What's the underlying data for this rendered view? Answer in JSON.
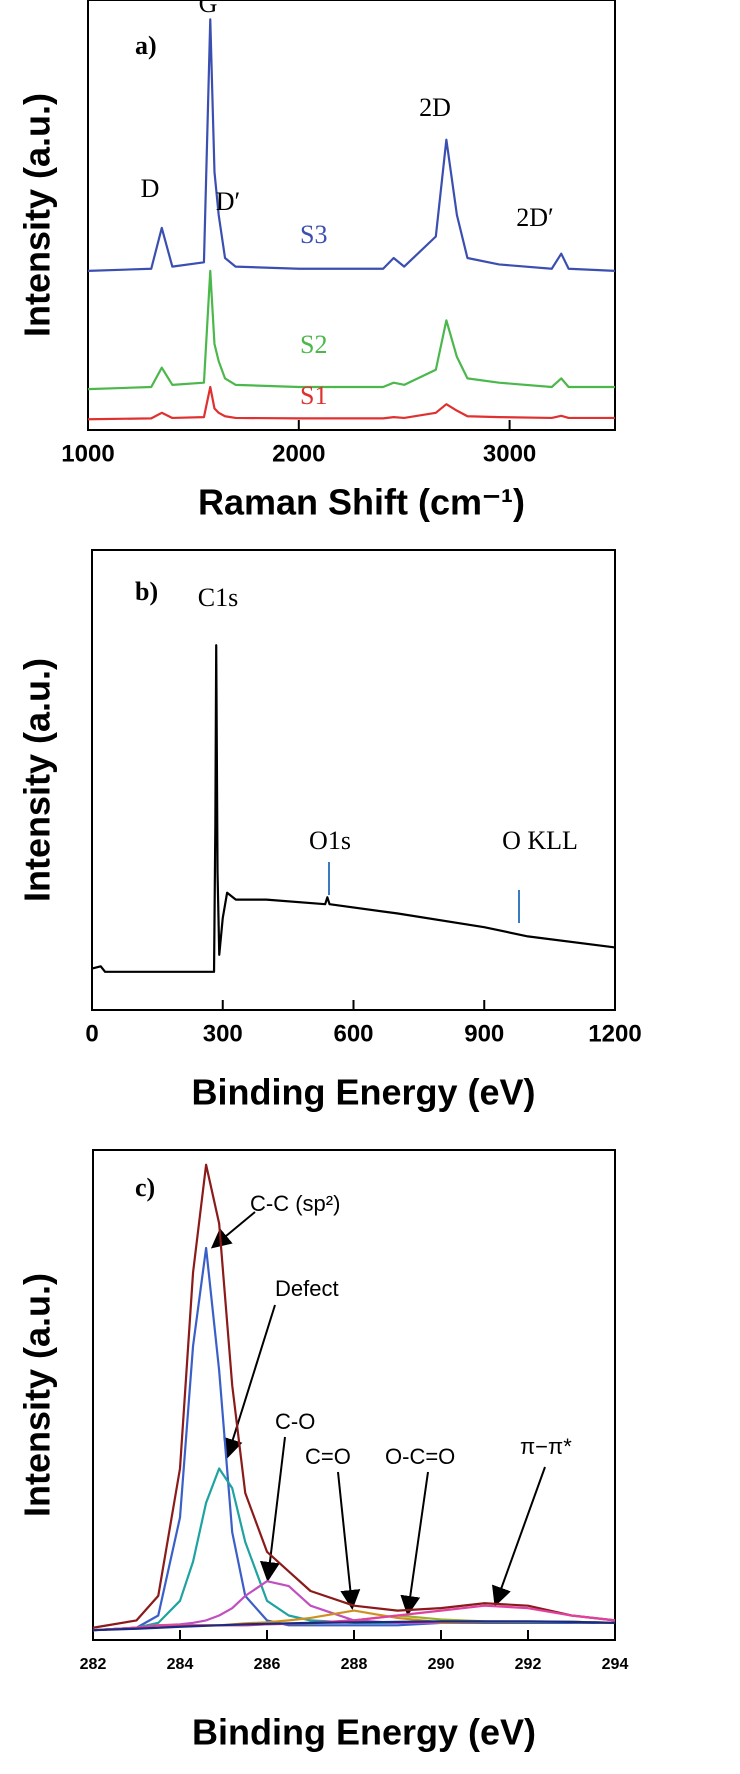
{
  "chart_data": [
    {
      "type": "line",
      "xlabel": "Raman Shift (cm⁻¹)",
      "ylabel": "Intensity (a.u.)",
      "annotations": [
        "a)",
        "G",
        "D",
        "D′",
        "2D",
        "2D′"
      ],
      "xlim": [
        1000,
        3500
      ],
      "xticks": [
        1000,
        2000,
        3000
      ],
      "ylim": [
        0,
        100
      ],
      "x": [
        1000,
        1300,
        1350,
        1400,
        1550,
        1580,
        1600,
        1620,
        1650,
        1700,
        2000,
        2400,
        2450,
        2500,
        2650,
        2700,
        2750,
        2800,
        2950,
        3200,
        3245,
        3280,
        3500
      ],
      "series": [
        {
          "name": "S3",
          "color": "#3b4fb0",
          "values": [
            37,
            37.5,
            47,
            38,
            39,
            95.5,
            60,
            50,
            40,
            38,
            37.5,
            37.5,
            40,
            38,
            45,
            67.5,
            50,
            40,
            38.5,
            37.5,
            41,
            37.5,
            37
          ]
        },
        {
          "name": "S2",
          "color": "#4cb84c",
          "values": [
            9.5,
            10,
            14.5,
            10.5,
            11,
            37,
            20,
            16,
            12,
            10.5,
            10,
            10,
            11,
            10.5,
            14,
            25.5,
            17,
            12,
            11,
            10,
            12,
            10,
            10
          ]
        },
        {
          "name": "S1",
          "color": "#e03030",
          "values": [
            2.5,
            2.7,
            4,
            2.8,
            3,
            10,
            5,
            4,
            3.2,
            2.8,
            2.7,
            2.7,
            3,
            2.8,
            4,
            6,
            4.5,
            3.2,
            3,
            2.8,
            3.3,
            2.8,
            2.8
          ]
        }
      ]
    },
    {
      "type": "line",
      "xlabel": "Binding Energy (eV)",
      "ylabel": "Intensity (a.u.)",
      "annotations": [
        "b)",
        "C1s",
        "O1s",
        "O KLL"
      ],
      "xlim": [
        0,
        1200
      ],
      "xticks": [
        0,
        300,
        600,
        900,
        1200
      ],
      "ylim": [
        0,
        100
      ],
      "x": [
        0,
        20,
        30,
        280,
        283,
        285,
        288,
        292,
        300,
        310,
        330,
        400,
        535,
        540,
        545,
        700,
        900,
        1000,
        1200
      ],
      "series": [
        {
          "color": "#000000",
          "values": [
            9,
            9.5,
            8.3,
            8.3,
            40,
            79.3,
            30,
            12,
            20,
            25.5,
            24,
            24,
            23,
            24.5,
            23,
            21,
            18,
            16,
            13.6
          ]
        }
      ]
    },
    {
      "type": "line",
      "xlabel": "Binding Energy (eV)",
      "ylabel": "Intensity (a.u.)",
      "annotations": [
        "c)"
      ],
      "xlim": [
        282,
        294
      ],
      "xticks": [
        282,
        284,
        286,
        288,
        290,
        292,
        294
      ],
      "ylim": [
        0,
        100
      ],
      "x": [
        282,
        283,
        283.5,
        284,
        284.3,
        284.6,
        284.9,
        285.2,
        285.5,
        286,
        286.5,
        287,
        288,
        289,
        290,
        291,
        292,
        293,
        294
      ],
      "series": [
        {
          "color": "#8b1a1a",
          "values": [
            2.5,
            4,
            9,
            35,
            75,
            97,
            85,
            52,
            30,
            18,
            14,
            10,
            7,
            6,
            6.5,
            7.5,
            7,
            5,
            4
          ]
        },
        {
          "name": "C-C (sp²)",
          "color": "#3a5fc8",
          "values": [
            2,
            2.5,
            5,
            25,
            60,
            80,
            55,
            22,
            9,
            4,
            3,
            3,
            3,
            3,
            3.5,
            3.5,
            3.5,
            3.5,
            3.5
          ]
        },
        {
          "name": "Defect",
          "color": "#1fa3a0",
          "values": [
            2,
            2.5,
            3.5,
            8,
            16,
            28,
            35,
            31,
            20,
            8,
            5,
            4,
            3.5,
            3.5,
            3.5,
            3.7,
            3.7,
            3.7,
            3.5
          ]
        },
        {
          "name": "C-O",
          "color": "#c050c0",
          "values": [
            2,
            2.5,
            3,
            3.2,
            3.5,
            4,
            5,
            6.5,
            9,
            12,
            11,
            7,
            4,
            3.5,
            3.5,
            3.7,
            3.7,
            3.7,
            3.5
          ]
        },
        {
          "name": "C=O",
          "color": "#d09020",
          "values": [
            2,
            2.5,
            3,
            3,
            3,
            3,
            3,
            3.2,
            3.4,
            3.6,
            4,
            4.5,
            6,
            4.5,
            3.6,
            3.7,
            3.7,
            3.7,
            3.5
          ]
        },
        {
          "name": "O-C=O",
          "color": "#9ab030",
          "values": [
            2,
            2.5,
            3,
            3,
            3,
            3,
            3,
            3,
            3,
            3.2,
            3.3,
            3.4,
            4,
            5,
            4.2,
            3.8,
            3.7,
            3.7,
            3.5
          ]
        },
        {
          "name": "π−π*",
          "color": "#e040a0",
          "values": [
            2,
            2.5,
            3,
            3,
            3,
            3,
            3,
            3,
            3,
            3.2,
            3.3,
            3.5,
            4,
            5,
            6,
            7,
            6.5,
            5,
            4
          ]
        },
        {
          "color": "#1a2a80",
          "values": [
            2,
            2.3,
            2.5,
            2.7,
            2.8,
            2.9,
            3,
            3.1,
            3.2,
            3.3,
            3.4,
            3.5,
            3.6,
            3.7,
            3.8,
            3.8,
            3.8,
            3.7,
            3.5
          ]
        }
      ]
    }
  ]
}
